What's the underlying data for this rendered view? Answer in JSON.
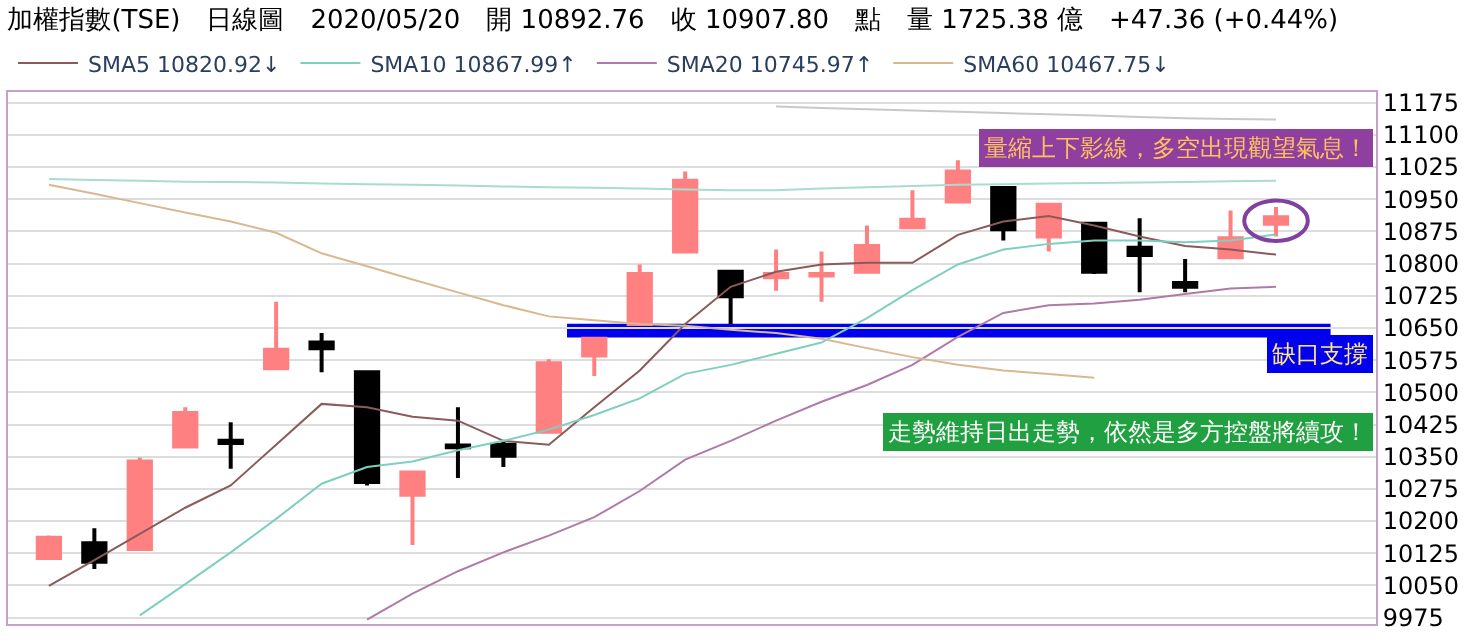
{
  "chart_data": {
    "type": "candlestick",
    "title": "加權指數(TSE)　日線圖　2020/05/20　開 10892.76　收 10907.80　點　量 1725.38 億　+47.36 (+0.44%)",
    "categories": [
      null,
      null,
      null,
      null,
      null,
      null,
      null,
      null,
      null,
      null,
      null,
      null,
      null,
      null,
      null,
      null,
      null,
      null,
      null,
      null,
      null,
      null,
      null,
      null,
      null,
      null,
      null,
      null
    ],
    "ohlc": [
      [
        10114,
        10166,
        10110,
        10161
      ],
      [
        10148,
        10183,
        10088,
        10105
      ],
      [
        10135,
        10348,
        10135,
        10339
      ],
      [
        10374,
        10465,
        10374,
        10452
      ],
      [
        10387,
        10430,
        10322,
        10382
      ],
      [
        10556,
        10711,
        10556,
        10599
      ],
      [
        10616,
        10638,
        10547,
        10603
      ],
      [
        10547,
        10547,
        10283,
        10291
      ],
      [
        10261,
        10313,
        10144,
        10313
      ],
      [
        10376,
        10465,
        10300,
        10372
      ],
      [
        10378,
        10387,
        10326,
        10352
      ],
      [
        10408,
        10577,
        10408,
        10568
      ],
      [
        10586,
        10625,
        10538,
        10625
      ],
      [
        10659,
        10798,
        10659,
        10776
      ],
      [
        10828,
        11015,
        10828,
        10993
      ],
      [
        10781,
        10781,
        10659,
        10724
      ],
      [
        10768,
        10833,
        10737,
        10776
      ],
      [
        10772,
        10828,
        10711,
        10776
      ],
      [
        10781,
        10889,
        10781,
        10841
      ],
      [
        10885,
        10971,
        10885,
        10902
      ],
      [
        10945,
        11041,
        10945,
        11015
      ],
      [
        10976,
        10976,
        10854,
        10880
      ],
      [
        10863,
        10937,
        10828,
        10937
      ],
      [
        10893,
        10893,
        10776,
        10781
      ],
      [
        10837,
        10906,
        10733,
        10820
      ],
      [
        10755,
        10811,
        10733,
        10746
      ],
      [
        10815,
        10924,
        10815,
        10859
      ],
      [
        10892.76,
        10932,
        10863,
        10907.8
      ]
    ],
    "colors": [
      "#ff8080",
      "#000000",
      "#ff8080",
      "#ff8080",
      "#000000",
      "#ff8080",
      "#000000",
      "#000000",
      "#ff8080",
      "#000000",
      "#000000",
      "#ff8080",
      "#ff8080",
      "#ff8080",
      "#ff8080",
      "#000000",
      "#ff8080",
      "#ff8080",
      "#ff8080",
      "#ff8080",
      "#ff8080",
      "#000000",
      "#ff8080",
      "#000000",
      "#000000",
      "#000000",
      "#ff8080",
      "#ff8080"
    ],
    "series": [
      {
        "type": "line",
        "name": "SMA5 10820.92↓",
        "color": "#8b5a5a",
        "values": [
          10049,
          10109,
          10170,
          10231,
          10283,
          10378,
          10473,
          10465,
          10443,
          10434,
          10387,
          10378,
          10465,
          10551,
          10659,
          10746,
          10781,
          10798,
          10802,
          10802,
          10867,
          10898,
          10911,
          10889,
          10863,
          10841,
          10833,
          10821
        ]
      },
      {
        "type": "line",
        "name": "SMA10 10867.99↑",
        "color": "#7fcfc0",
        "values": [
          null,
          null,
          9980,
          10053,
          10127,
          10205,
          10287,
          10326,
          10339,
          10365,
          10387,
          10413,
          10447,
          10486,
          10543,
          10564,
          10590,
          10616,
          10673,
          10738,
          10798,
          10833,
          10846,
          10854,
          10854,
          10850,
          10854,
          10868
        ]
      },
      {
        "type": "line",
        "name": "SMA20 10745.97↑",
        "color": "#b07aa8",
        "values": [
          null,
          null,
          null,
          null,
          null,
          null,
          null,
          9970,
          10031,
          10083,
          10127,
          10166,
          10209,
          10270,
          10343,
          10387,
          10434,
          10478,
          10517,
          10564,
          10629,
          10685,
          10703,
          10707,
          10716,
          10729,
          10742,
          10746
        ]
      },
      {
        "type": "line",
        "name": "SMA60 10467.75↓",
        "color": "#d8b890",
        "values": [
          10984,
          10963,
          10941,
          10919,
          10898,
          10872,
          10824,
          10794,
          10763,
          10733,
          10703,
          10677,
          10668,
          10659,
          10655,
          10646,
          10638,
          10625,
          10603,
          10582,
          10564,
          10551,
          10543,
          10534,
          null,
          null,
          null,
          null
        ]
      },
      {
        "type": "line",
        "color": "#a8dcd0",
        "values": [
          10997,
          10995,
          10993,
          10991,
          10990,
          10989,
          10987,
          10985,
          10984,
          10982,
          10980,
          10978,
          10977,
          10975,
          10973,
          10971,
          10971,
          10975,
          10978,
          10981,
          10984,
          10985,
          10987,
          10988,
          10989,
          10990,
          10992,
          10993
        ]
      },
      {
        "type": "line",
        "color": "#c8c8c8",
        "values": [
          null,
          null,
          null,
          null,
          null,
          null,
          null,
          null,
          null,
          null,
          null,
          null,
          null,
          null,
          null,
          null,
          11166,
          11163,
          11160,
          11157,
          11154,
          11151,
          11148,
          11145,
          11142,
          11139,
          11137,
          11136
        ]
      }
    ],
    "ylim": [
      9960,
      11200
    ],
    "yticks": [
      9975,
      10050,
      10125,
      10200,
      10275,
      10350,
      10425,
      10500,
      10575,
      10650,
      10725,
      10800,
      10875,
      10950,
      11025,
      11100,
      11175
    ],
    "grid": "y",
    "legend": "top left",
    "bands": [
      {
        "axis": "y",
        "from": 10628,
        "to": 10660,
        "label": "缺口支撐",
        "color": "#0000ee"
      }
    ],
    "annotations": [
      "量縮上下影線，多空出現觀望氣息！",
      "走勢維持日出走勢，依然是多方控盤將續攻！"
    ]
  }
}
